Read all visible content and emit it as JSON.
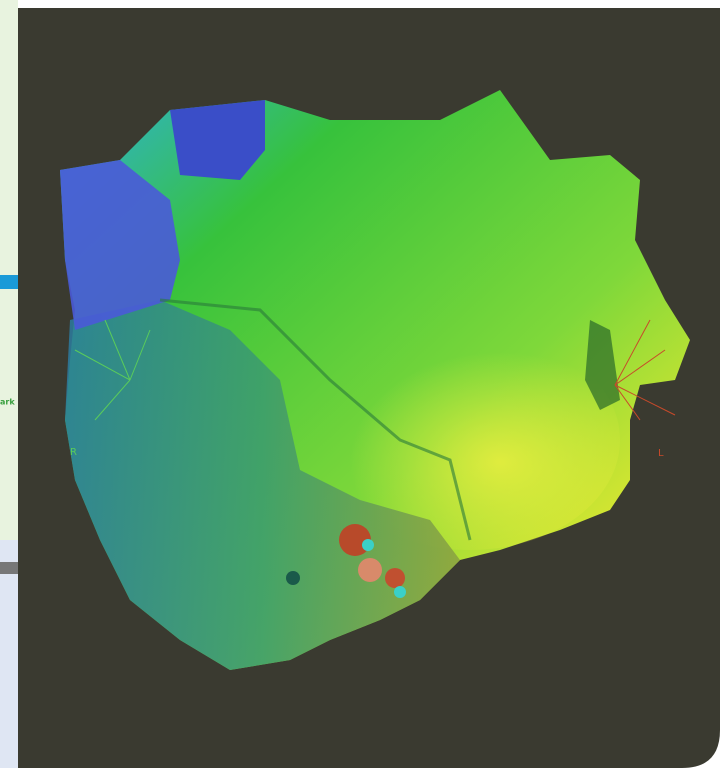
{
  "sidebar": {
    "label": "ark"
  },
  "image": {
    "right_label": "R",
    "left_label": "L"
  }
}
